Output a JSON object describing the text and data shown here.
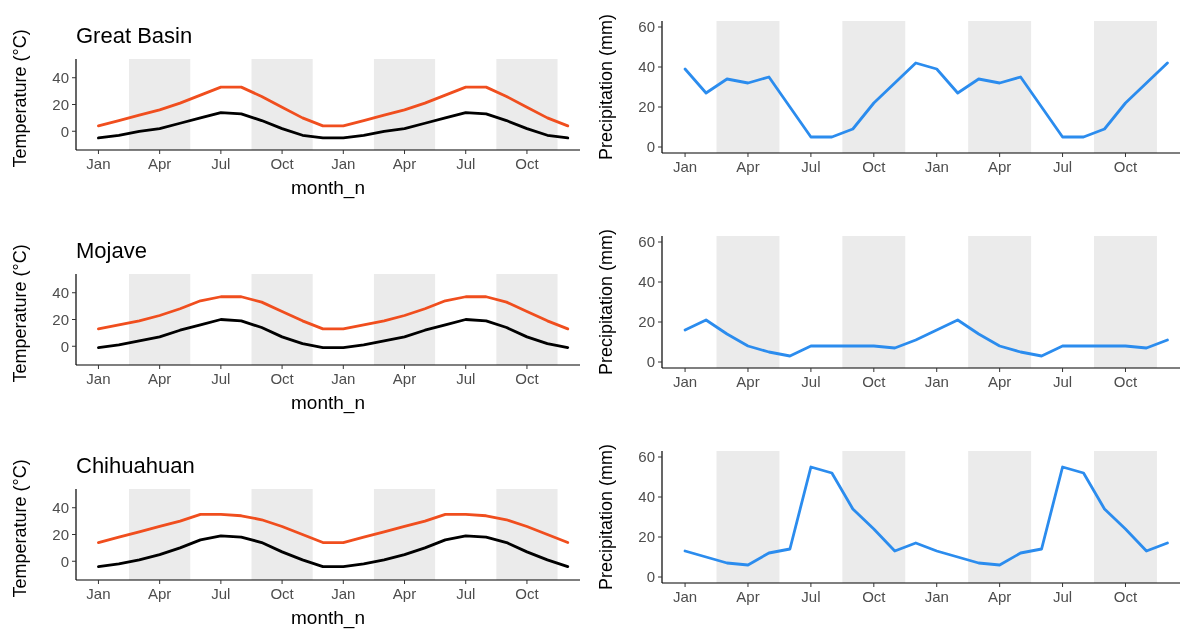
{
  "chart_data": [
    {
      "type": "line",
      "title": "Great Basin",
      "xlabel": "month_n",
      "ylabel": "Temperature (°C)",
      "categories": [
        "Jan",
        null,
        null,
        "Apr",
        null,
        null,
        "Jul",
        null,
        null,
        "Oct",
        null,
        null,
        "Jan",
        null,
        null,
        "Apr",
        null,
        null,
        "Jul",
        null,
        null,
        "Oct",
        null,
        null
      ],
      "series": [
        {
          "color": "#f04e1e",
          "values": [
            4,
            8,
            12,
            16,
            21,
            27,
            33,
            33,
            26,
            18,
            10,
            4,
            4,
            8,
            12,
            16,
            21,
            27,
            33,
            33,
            26,
            18,
            10,
            4
          ]
        },
        {
          "color": "#000000",
          "values": [
            -5,
            -3,
            0,
            2,
            6,
            10,
            14,
            13,
            8,
            2,
            -3,
            -5,
            -5,
            -3,
            0,
            2,
            6,
            10,
            14,
            13,
            8,
            2,
            -3,
            -5
          ]
        }
      ],
      "ylim": [
        -14,
        54
      ],
      "yticks": [
        0,
        20,
        40
      ]
    },
    {
      "type": "line",
      "ylabel": "Precipitation (mm)",
      "categories": [
        "Jan",
        null,
        null,
        "Apr",
        null,
        null,
        "Jul",
        null,
        null,
        "Oct",
        null,
        null,
        "Jan",
        null,
        null,
        "Apr",
        null,
        null,
        "Jul",
        null,
        null,
        "Oct",
        null,
        null
      ],
      "series": [
        {
          "color": "#2b8cee",
          "values": [
            39,
            27,
            34,
            32,
            35,
            20,
            5,
            5,
            9,
            22,
            32,
            42,
            39,
            27,
            34,
            32,
            35,
            20,
            5,
            5,
            9,
            22,
            32,
            42
          ]
        }
      ],
      "ylim": [
        -3,
        63
      ],
      "yticks": [
        0,
        20,
        40,
        60
      ]
    },
    {
      "type": "line",
      "title": "Mojave",
      "xlabel": "month_n",
      "ylabel": "Temperature (°C)",
      "categories": [
        "Jan",
        null,
        null,
        "Apr",
        null,
        null,
        "Jul",
        null,
        null,
        "Oct",
        null,
        null,
        "Jan",
        null,
        null,
        "Apr",
        null,
        null,
        "Jul",
        null,
        null,
        "Oct",
        null,
        null
      ],
      "series": [
        {
          "color": "#f04e1e",
          "values": [
            13,
            16,
            19,
            23,
            28,
            34,
            37,
            37,
            33,
            26,
            19,
            13,
            13,
            16,
            19,
            23,
            28,
            34,
            37,
            37,
            33,
            26,
            19,
            13
          ]
        },
        {
          "color": "#000000",
          "values": [
            -1,
            1,
            4,
            7,
            12,
            16,
            20,
            19,
            14,
            7,
            2,
            -1,
            -1,
            1,
            4,
            7,
            12,
            16,
            20,
            19,
            14,
            7,
            2,
            -1
          ]
        }
      ],
      "ylim": [
        -14,
        54
      ],
      "yticks": [
        0,
        20,
        40
      ]
    },
    {
      "type": "line",
      "ylabel": "Precipitation (mm)",
      "categories": [
        "Jan",
        null,
        null,
        "Apr",
        null,
        null,
        "Jul",
        null,
        null,
        "Oct",
        null,
        null,
        "Jan",
        null,
        null,
        "Apr",
        null,
        null,
        "Jul",
        null,
        null,
        "Oct",
        null,
        null
      ],
      "series": [
        {
          "color": "#2b8cee",
          "values": [
            16,
            21,
            14,
            8,
            5,
            3,
            8,
            8,
            8,
            8,
            7,
            11,
            16,
            21,
            14,
            8,
            5,
            3,
            8,
            8,
            8,
            8,
            7,
            11
          ]
        }
      ],
      "ylim": [
        -3,
        63
      ],
      "yticks": [
        0,
        20,
        40,
        60
      ]
    },
    {
      "type": "line",
      "title": "Chihuahuan",
      "xlabel": "month_n",
      "ylabel": "Temperature (°C)",
      "categories": [
        "Jan",
        null,
        null,
        "Apr",
        null,
        null,
        "Jul",
        null,
        null,
        "Oct",
        null,
        null,
        "Jan",
        null,
        null,
        "Apr",
        null,
        null,
        "Jul",
        null,
        null,
        "Oct",
        null,
        null
      ],
      "series": [
        {
          "color": "#f04e1e",
          "values": [
            14,
            18,
            22,
            26,
            30,
            35,
            35,
            34,
            31,
            26,
            20,
            14,
            14,
            18,
            22,
            26,
            30,
            35,
            35,
            34,
            31,
            26,
            20,
            14
          ]
        },
        {
          "color": "#000000",
          "values": [
            -4,
            -2,
            1,
            5,
            10,
            16,
            19,
            18,
            14,
            7,
            1,
            -4,
            -4,
            -2,
            1,
            5,
            10,
            16,
            19,
            18,
            14,
            7,
            1,
            -4
          ]
        }
      ],
      "ylim": [
        -14,
        54
      ],
      "yticks": [
        0,
        20,
        40
      ]
    },
    {
      "type": "line",
      "ylabel": "Precipitation (mm)",
      "categories": [
        "Jan",
        null,
        null,
        "Apr",
        null,
        null,
        "Jul",
        null,
        null,
        "Oct",
        null,
        null,
        "Jan",
        null,
        null,
        "Apr",
        null,
        null,
        "Jul",
        null,
        null,
        "Oct",
        null,
        null
      ],
      "series": [
        {
          "color": "#2b8cee",
          "values": [
            13,
            10,
            7,
            6,
            12,
            14,
            55,
            52,
            34,
            24,
            13,
            17,
            13,
            10,
            7,
            6,
            12,
            14,
            55,
            52,
            34,
            24,
            13,
            17
          ]
        }
      ],
      "ylim": [
        -3,
        63
      ],
      "yticks": [
        0,
        20,
        40,
        60
      ]
    }
  ]
}
